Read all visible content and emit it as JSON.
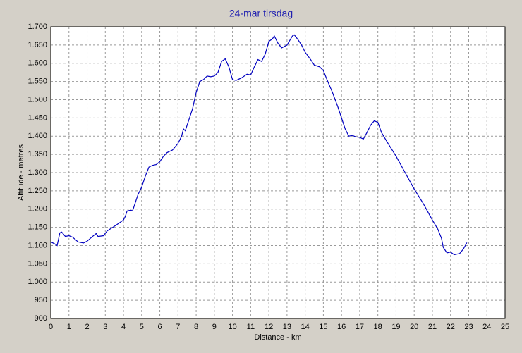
{
  "chart_data": {
    "type": "line",
    "title": "24-mar tirsdag",
    "x_label": "Distance - km",
    "y_label": "Altitude - metres",
    "color": "#0000c0",
    "grid": true,
    "xlim": [
      0,
      25
    ],
    "xticks": [
      0,
      1,
      2,
      3,
      4,
      5,
      6,
      7,
      8,
      9,
      10,
      11,
      12,
      13,
      14,
      15,
      16,
      17,
      18,
      19,
      20,
      21,
      22,
      23,
      24,
      25
    ],
    "ylim": [
      900,
      1700
    ],
    "yticks": [
      900,
      950,
      {
        "value": 1000,
        "label": "1.000"
      },
      {
        "value": 1050,
        "label": "1.050"
      },
      {
        "value": 1100,
        "label": "1.100"
      },
      {
        "value": 1150,
        "label": "1.150"
      },
      {
        "value": 1200,
        "label": "1.200"
      },
      {
        "value": 1250,
        "label": "1.250"
      },
      {
        "value": 1300,
        "label": "1.300"
      },
      {
        "value": 1350,
        "label": "1.350"
      },
      {
        "value": 1400,
        "label": "1.400"
      },
      {
        "value": 1450,
        "label": "1.450"
      },
      {
        "value": 1500,
        "label": "1.500"
      },
      {
        "value": 1550,
        "label": "1.550"
      },
      {
        "value": 1600,
        "label": "1.600"
      },
      {
        "value": 1650,
        "label": "1.650"
      },
      {
        "value": 1700,
        "label": "1.700"
      }
    ],
    "x": [
      0,
      0.2,
      0.35,
      0.5,
      0.6,
      0.8,
      1.0,
      1.2,
      1.5,
      1.8,
      2.0,
      2.3,
      2.5,
      2.6,
      2.9,
      3.1,
      3.5,
      3.8,
      4.0,
      4.1,
      4.2,
      4.4,
      4.5,
      4.6,
      4.8,
      5.0,
      5.2,
      5.4,
      5.6,
      5.8,
      6.0,
      6.2,
      6.4,
      6.7,
      7.0,
      7.2,
      7.3,
      7.4,
      7.6,
      7.8,
      8.0,
      8.2,
      8.4,
      8.6,
      8.8,
      9.0,
      9.2,
      9.4,
      9.6,
      9.8,
      10.0,
      10.2,
      10.5,
      10.8,
      11.0,
      11.2,
      11.4,
      11.6,
      11.8,
      12.0,
      12.2,
      12.3,
      12.5,
      12.7,
      13.0,
      13.3,
      13.4,
      13.6,
      13.8,
      14.0,
      14.3,
      14.5,
      14.8,
      15.0,
      15.2,
      15.5,
      15.8,
      16.0,
      16.2,
      16.4,
      16.6,
      16.8,
      17.0,
      17.2,
      17.4,
      17.6,
      17.8,
      18.0,
      18.2,
      18.5,
      19.0,
      19.5,
      20.0,
      20.5,
      21.0,
      21.3,
      21.5,
      21.6,
      21.8,
      22.0,
      22.2,
      22.5,
      22.7,
      22.9
    ],
    "values": [
      1110,
      1105,
      1100,
      1135,
      1137,
      1125,
      1127,
      1123,
      1110,
      1107,
      1112,
      1125,
      1133,
      1125,
      1127,
      1140,
      1153,
      1163,
      1170,
      1180,
      1195,
      1197,
      1195,
      1210,
      1240,
      1260,
      1290,
      1315,
      1320,
      1322,
      1330,
      1345,
      1355,
      1362,
      1380,
      1400,
      1420,
      1415,
      1445,
      1475,
      1520,
      1550,
      1555,
      1565,
      1563,
      1565,
      1575,
      1605,
      1612,
      1590,
      1555,
      1553,
      1560,
      1570,
      1568,
      1590,
      1610,
      1605,
      1625,
      1660,
      1667,
      1675,
      1655,
      1642,
      1650,
      1675,
      1678,
      1665,
      1650,
      1630,
      1610,
      1595,
      1590,
      1580,
      1555,
      1520,
      1480,
      1450,
      1420,
      1400,
      1402,
      1398,
      1397,
      1392,
      1410,
      1430,
      1442,
      1438,
      1410,
      1385,
      1345,
      1300,
      1255,
      1215,
      1170,
      1145,
      1120,
      1095,
      1080,
      1082,
      1075,
      1078,
      1090,
      1108
    ]
  }
}
